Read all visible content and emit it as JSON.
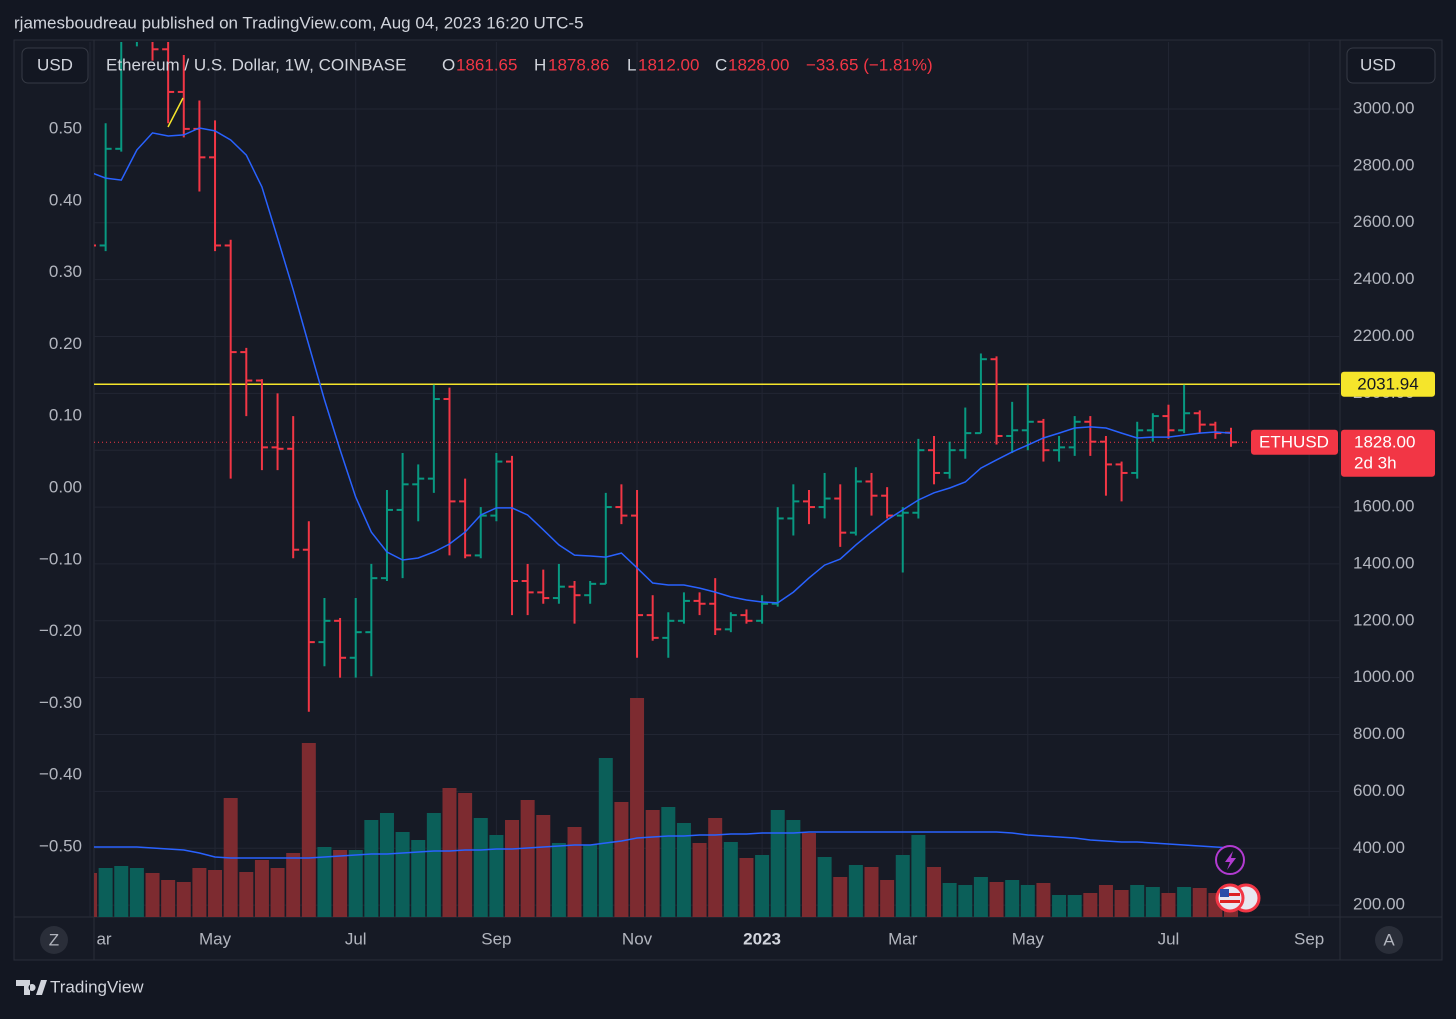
{
  "header": {
    "title": "rjamesboudreau published on TradingView.com, Aug 04, 2023 16:20 UTC-5"
  },
  "legend": {
    "currency_left": "USD",
    "currency_right": "USD",
    "symbol": "Ethereum / U.S. Dollar, 1W, COINBASE",
    "o_label": "O",
    "o": "1861.65",
    "h_label": "H",
    "h": "1878.86",
    "l_label": "L",
    "l": "1812.00",
    "c_label": "C",
    "c": "1828.00",
    "change": "−33.65 (−1.81%)"
  },
  "buttons": {
    "left": "Z",
    "right": "A"
  },
  "footer": {
    "brand": "TradingView"
  },
  "chart_data": {
    "type": "ohlc",
    "categories": [
      "ar",
      null,
      null,
      null,
      null,
      null,
      null,
      null,
      "May",
      null,
      null,
      null,
      null,
      null,
      null,
      null,
      null,
      "Jul",
      null,
      null,
      null,
      null,
      null,
      null,
      null,
      null,
      "Sep",
      null,
      null,
      null,
      null,
      null,
      null,
      null,
      null,
      "Nov",
      null,
      null,
      null,
      null,
      null,
      null,
      null,
      "2023",
      null,
      null,
      null,
      null,
      null,
      null,
      null,
      null,
      "Mar",
      null,
      null,
      null,
      null,
      null,
      null,
      null,
      "May",
      null,
      null,
      null,
      null,
      null,
      null,
      null,
      null,
      "Jul",
      null,
      null,
      null,
      null,
      null,
      null,
      null,
      null,
      "Sep"
    ],
    "open": [
      2570,
      2520,
      2860,
      3290,
      3450,
      3210,
      3060,
      2930,
      2830,
      2520,
      2145,
      2045,
      1810,
      1805,
      1450,
      1125,
      1200,
      1070,
      1160,
      1350,
      1590,
      1680,
      1700,
      1980,
      1620,
      1430,
      1570,
      1760,
      1340,
      1300,
      1280,
      1320,
      1290,
      1330,
      1600,
      1570,
      1220,
      1140,
      1200,
      1270,
      1260,
      1170,
      1220,
      1200,
      1260,
      1560,
      1620,
      1600,
      1630,
      1510,
      1690,
      1640,
      1570,
      1580,
      1800,
      1720,
      1800,
      1860,
      2120,
      1850,
      1870,
      1900,
      1800,
      1810,
      1900,
      1830,
      1750,
      1720,
      1870,
      1920,
      1870,
      1930,
      1890,
      1861.65,
      null,
      null,
      null,
      null,
      null
    ],
    "high": [
      2700,
      2950,
      3300,
      3580,
      3550,
      3300,
      3190,
      3030,
      2960,
      2540,
      2160,
      2050,
      2000,
      1920,
      1550,
      1280,
      1210,
      1280,
      1400,
      1660,
      1790,
      1750,
      2030,
      2020,
      1700,
      1600,
      1790,
      1780,
      1400,
      1380,
      1400,
      1340,
      1340,
      1650,
      1680,
      1660,
      1290,
      1230,
      1300,
      1300,
      1350,
      1230,
      1240,
      1290,
      1600,
      1680,
      1660,
      1720,
      1680,
      1740,
      1720,
      1670,
      1600,
      1840,
      1850,
      1830,
      1950,
      2140,
      2130,
      1970,
      2030,
      1910,
      1850,
      1920,
      1920,
      1850,
      1760,
      1900,
      1930,
      1960,
      2030,
      1940,
      1900,
      1878.86,
      null,
      null,
      null,
      null,
      null
    ],
    "low": [
      2470,
      2500,
      2850,
      3220,
      3170,
      2950,
      2900,
      2710,
      2500,
      1700,
      1920,
      1730,
      1730,
      1420,
      880,
      1040,
      1000,
      1000,
      1005,
      1340,
      1350,
      1550,
      1650,
      1430,
      1420,
      1420,
      1550,
      1220,
      1220,
      1260,
      1260,
      1190,
      1260,
      1330,
      1540,
      1070,
      1130,
      1070,
      1190,
      1220,
      1150,
      1160,
      1190,
      1190,
      1250,
      1500,
      1540,
      1560,
      1460,
      1500,
      1570,
      1560,
      1370,
      1560,
      1680,
      1700,
      1770,
      1860,
      1820,
      1790,
      1800,
      1760,
      1760,
      1780,
      1780,
      1640,
      1620,
      1700,
      1830,
      1840,
      1860,
      1860,
      1840,
      1812,
      null,
      null,
      null,
      null,
      null
    ],
    "close": [
      2520,
      2860,
      3290,
      3450,
      3210,
      3060,
      2930,
      2830,
      2520,
      2145,
      2045,
      1810,
      1805,
      1450,
      1125,
      1200,
      1070,
      1160,
      1350,
      1590,
      1680,
      1700,
      1980,
      1620,
      1430,
      1570,
      1760,
      1340,
      1300,
      1280,
      1320,
      1290,
      1330,
      1600,
      1570,
      1220,
      1140,
      1200,
      1270,
      1260,
      1170,
      1220,
      1200,
      1260,
      1560,
      1620,
      1600,
      1630,
      1510,
      1690,
      1640,
      1570,
      1580,
      1800,
      1720,
      1800,
      1860,
      2120,
      1850,
      1870,
      1900,
      1800,
      1810,
      1900,
      1830,
      1750,
      1720,
      1870,
      1920,
      1870,
      1930,
      1890,
      1860,
      1828,
      null,
      null,
      null,
      null,
      null
    ],
    "ma": [
      2778,
      2757,
      2750,
      2856,
      2916,
      2905,
      2909,
      2933,
      2923,
      2891,
      2838,
      2726,
      2546,
      2364,
      2170,
      1977,
      1801,
      1635,
      1512,
      1442,
      1414,
      1421,
      1442,
      1470,
      1512,
      1572,
      1597,
      1597,
      1572,
      1520,
      1467,
      1431,
      1428,
      1424,
      1438,
      1386,
      1333,
      1326,
      1326,
      1315,
      1301,
      1284,
      1273,
      1266,
      1263,
      1301,
      1351,
      1396,
      1417,
      1467,
      1512,
      1555,
      1590,
      1625,
      1650,
      1667,
      1688,
      1737,
      1766,
      1794,
      1818,
      1843,
      1860,
      1878,
      1882,
      1878,
      1860,
      1843,
      1846,
      1846,
      1853,
      1860,
      1864,
      1860,
      null,
      null,
      null,
      null,
      null
    ],
    "volume": [
      44,
      49,
      51,
      49,
      44,
      37,
      35,
      49,
      47,
      119,
      45,
      57,
      49,
      64,
      174,
      70,
      67,
      67,
      97,
      104,
      85,
      77,
      104,
      129,
      124,
      99,
      82,
      97,
      117,
      102,
      74,
      90,
      72,
      159,
      115,
      219,
      107,
      110,
      94,
      74,
      99,
      75,
      59,
      62,
      107,
      97,
      84,
      60,
      40,
      52,
      50,
      37,
      62,
      82,
      50,
      34,
      32,
      40,
      35,
      37,
      32,
      34,
      22,
      22,
      24,
      32,
      27,
      32,
      30,
      24,
      30,
      29,
      24,
      12,
      null,
      null,
      null,
      null,
      null
    ],
    "volume_ma": [
      70,
      70,
      70,
      70,
      69,
      68,
      67,
      64,
      60,
      59,
      59,
      59,
      59,
      59,
      59,
      60,
      61,
      62,
      63,
      63,
      64,
      65,
      66,
      66,
      67,
      67,
      68,
      68,
      69,
      70,
      71,
      72,
      72,
      74,
      76,
      79,
      80,
      81,
      81,
      82,
      82,
      83,
      83,
      84,
      84,
      84,
      85,
      85,
      85,
      85,
      85,
      85,
      85,
      85,
      85,
      85,
      85,
      85,
      85,
      84,
      82,
      81,
      80,
      79,
      77,
      76,
      75,
      75,
      74,
      73,
      72,
      71,
      70,
      69,
      null,
      null,
      null,
      null,
      null
    ],
    "volume_ylim": [
      0,
      875
    ],
    "ylim": [
      158.3,
      3235.6
    ],
    "yticks": [
      {
        "value": 200,
        "label": "200.00"
      },
      {
        "value": 400,
        "label": "400.00"
      },
      {
        "value": 600,
        "label": "600.00"
      },
      {
        "value": 800,
        "label": "800.00"
      },
      {
        "value": 1000,
        "label": "1000.00"
      },
      {
        "value": 1200,
        "label": "1200.00"
      },
      {
        "value": 1400,
        "label": "1400.00"
      },
      {
        "value": 1600,
        "label": "1600.00"
      },
      {
        "value": 1800,
        "label": "1800.00"
      },
      {
        "value": 2000,
        "label": "2000.00"
      },
      {
        "value": 2200,
        "label": "2200.00"
      },
      {
        "value": 2400,
        "label": "2400.00"
      },
      {
        "value": 2600,
        "label": "2600.00"
      },
      {
        "value": 2800,
        "label": "2800.00"
      },
      {
        "value": 3000,
        "label": "3000.00"
      }
    ],
    "y2lim": [
      -0.5975,
      0.6212
    ],
    "y2ticks": [
      {
        "value": 0.5,
        "label": "0.50"
      },
      {
        "value": 0.4,
        "label": "0.40"
      },
      {
        "value": 0.3,
        "label": "0.30"
      },
      {
        "value": 0.2,
        "label": "0.20"
      },
      {
        "value": 0.1,
        "label": "0.10"
      },
      {
        "value": 0,
        "label": "0.00"
      },
      {
        "value": -0.1,
        "label": "−0.10"
      },
      {
        "value": -0.2,
        "label": "−0.20"
      },
      {
        "value": -0.3,
        "label": "−0.30"
      },
      {
        "value": -0.4,
        "label": "−0.40"
      },
      {
        "value": -0.5,
        "label": "−0.50"
      }
    ],
    "hline": 2031.94,
    "hline_color": "#f5e52b",
    "price_label": {
      "symbol": "ETHUSD",
      "price": {
        "value": 1828,
        "label": "1828.00"
      },
      "countdown": "2d 3h"
    },
    "up_color": "#089981",
    "down_color": "#f23645",
    "volume_up_color": "#0b5f59",
    "volume_down_color": "#7d2b30",
    "ma_color": "#2962ff",
    "grid": true
  }
}
